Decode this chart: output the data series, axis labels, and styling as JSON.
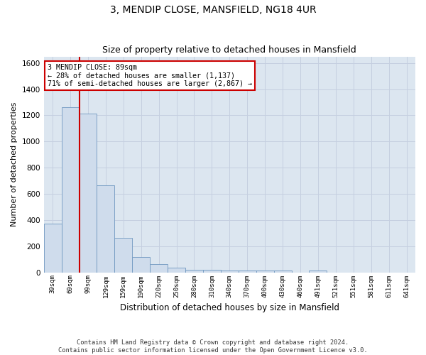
{
  "title": "3, MENDIP CLOSE, MANSFIELD, NG18 4UR",
  "subtitle": "Size of property relative to detached houses in Mansfield",
  "xlabel": "Distribution of detached houses by size in Mansfield",
  "ylabel": "Number of detached properties",
  "footnote": "Contains HM Land Registry data © Crown copyright and database right 2024.\nContains public sector information licensed under the Open Government Licence v3.0.",
  "categories": [
    "39sqm",
    "69sqm",
    "99sqm",
    "129sqm",
    "159sqm",
    "190sqm",
    "220sqm",
    "250sqm",
    "280sqm",
    "310sqm",
    "340sqm",
    "370sqm",
    "400sqm",
    "430sqm",
    "460sqm",
    "491sqm",
    "521sqm",
    "551sqm",
    "581sqm",
    "611sqm",
    "641sqm"
  ],
  "values": [
    370,
    1265,
    1215,
    665,
    265,
    115,
    65,
    38,
    22,
    20,
    15,
    15,
    15,
    14,
    0,
    15,
    0,
    0,
    0,
    0,
    0
  ],
  "bar_color": "#cfdcec",
  "bar_edge_color": "#7098c0",
  "vline_color": "#cc0000",
  "vline_pos": 1.5,
  "annotation_text": "3 MENDIP CLOSE: 89sqm\n← 28% of detached houses are smaller (1,137)\n71% of semi-detached houses are larger (2,867) →",
  "annotation_box_color": "#ffffff",
  "annotation_box_edge": "#cc0000",
  "ylim": [
    0,
    1650
  ],
  "yticks": [
    0,
    200,
    400,
    600,
    800,
    1000,
    1200,
    1400,
    1600
  ],
  "grid_color": "#c5cfe0",
  "plot_bg_color": "#dce6f0",
  "title_fontsize": 10,
  "subtitle_fontsize": 9
}
